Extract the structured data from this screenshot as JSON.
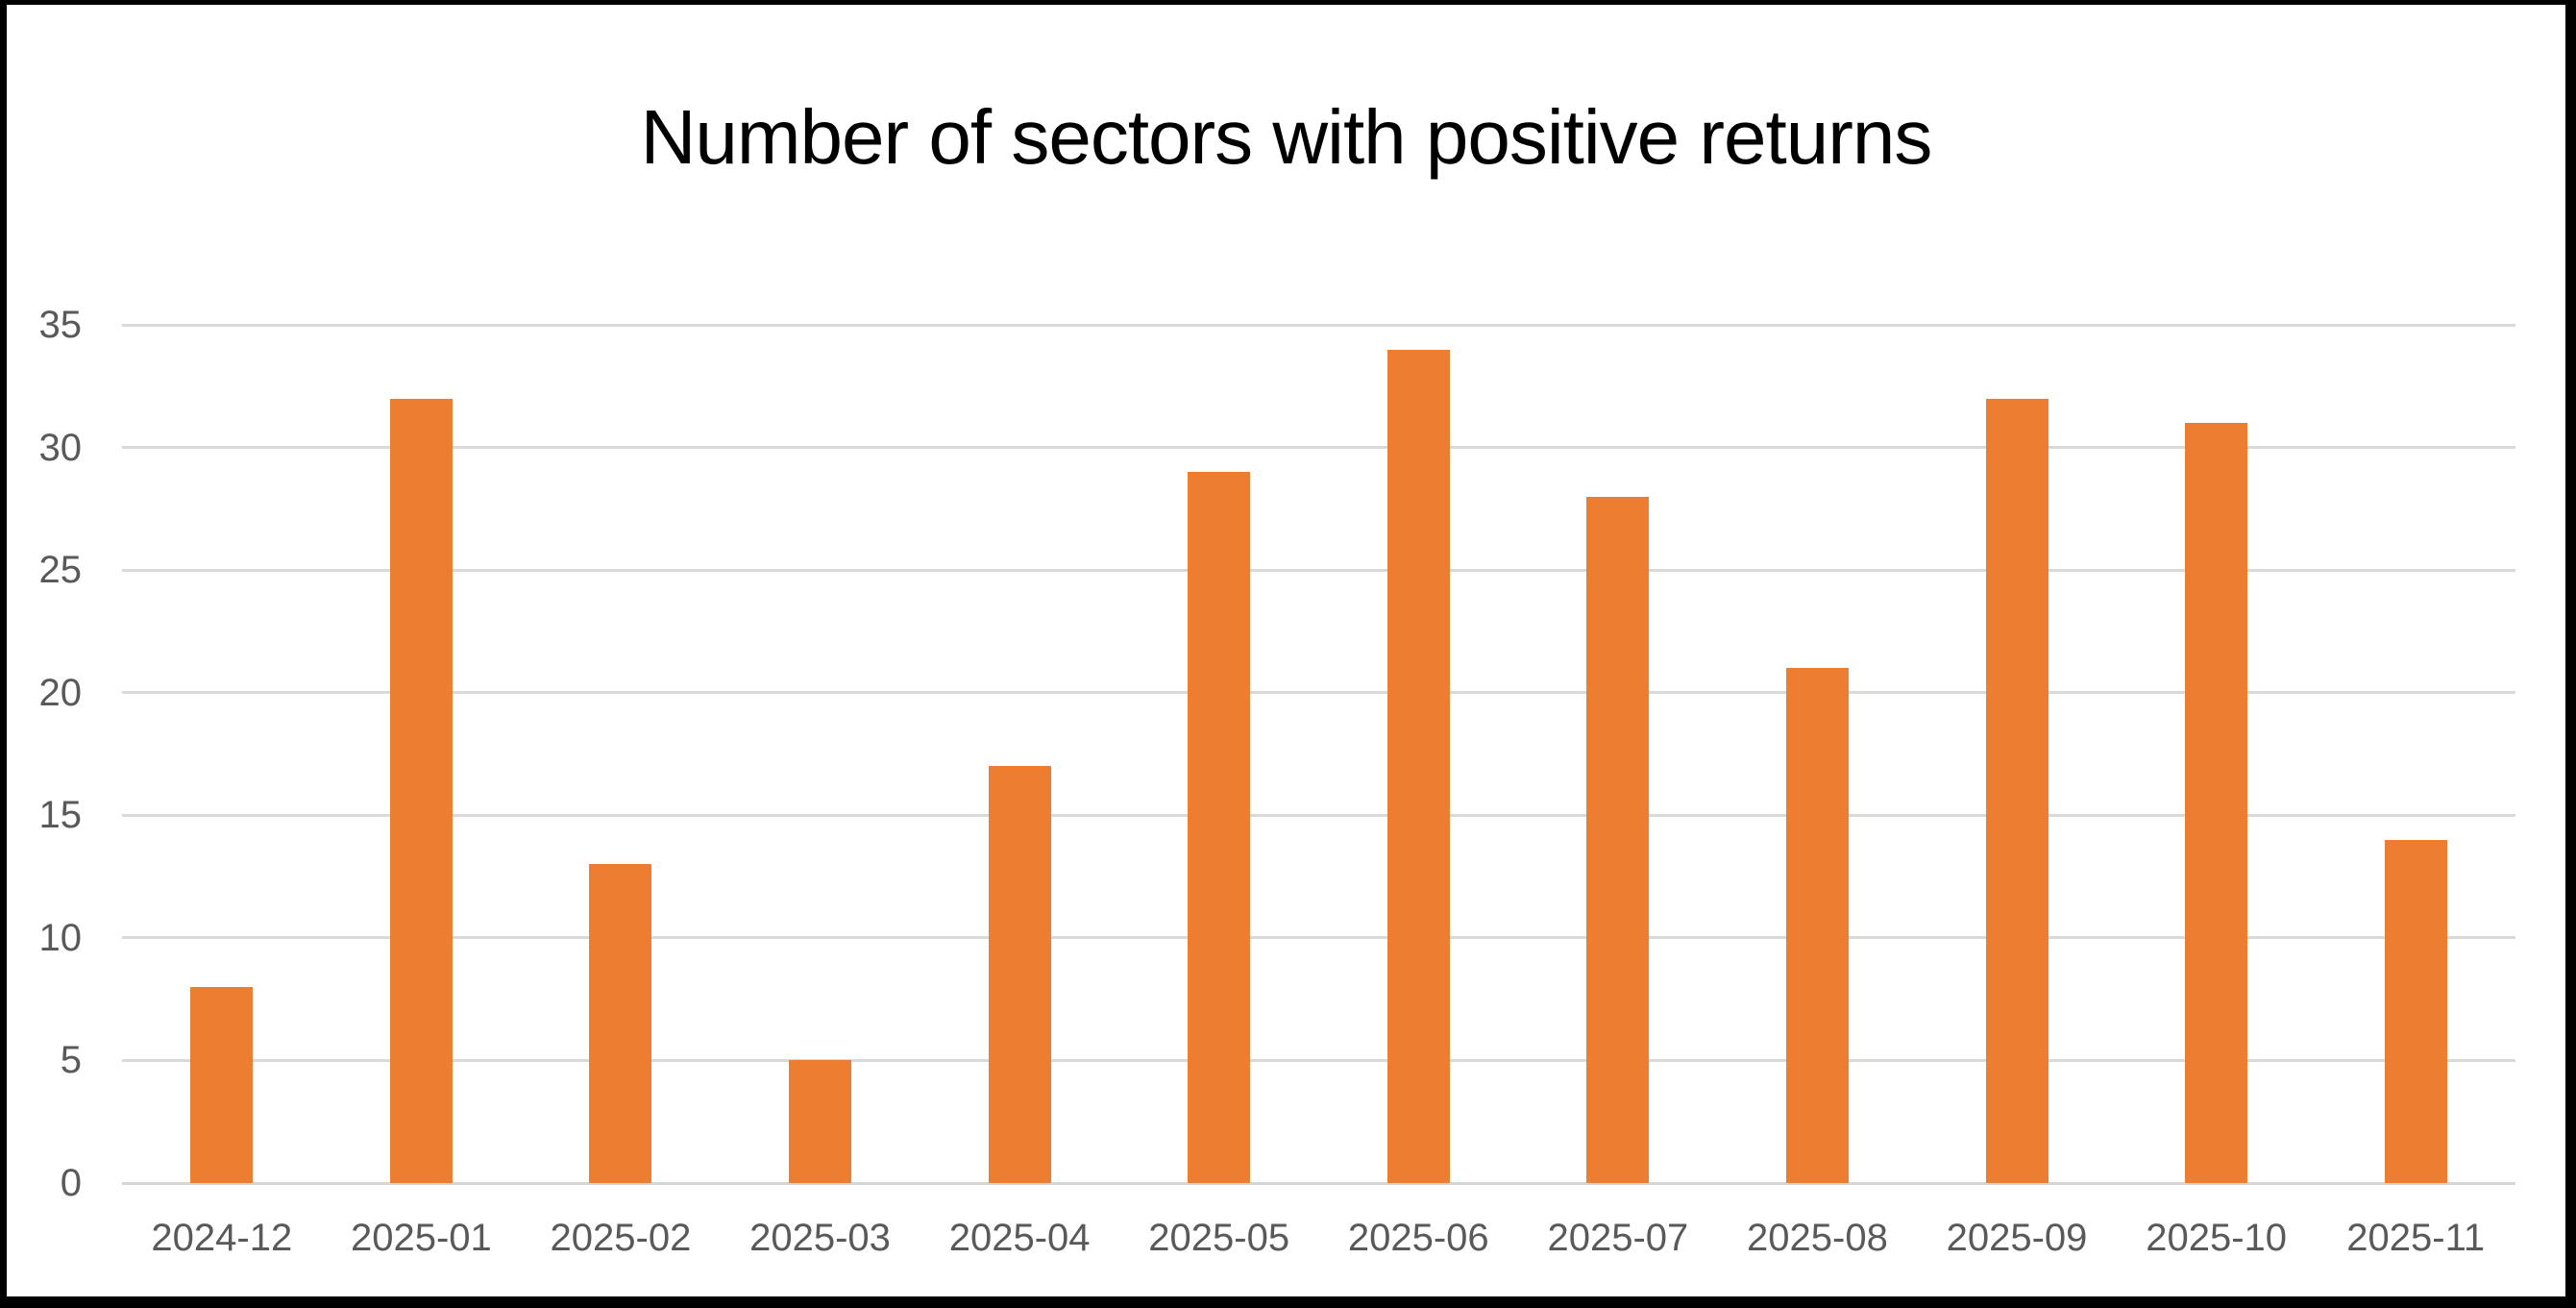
{
  "window": {
    "background_color": "#ffffff",
    "border_color": "#000000"
  },
  "chart_data": {
    "type": "bar",
    "title": "Number of sectors with positive returns",
    "categories": [
      "2024-12",
      "2025-01",
      "2025-02",
      "2025-03",
      "2025-04",
      "2025-05",
      "2025-06",
      "2025-07",
      "2025-08",
      "2025-09",
      "2025-10",
      "2025-11"
    ],
    "values": [
      8,
      32,
      13,
      5,
      17,
      29,
      34,
      28,
      21,
      32,
      31,
      14
    ],
    "xlabel": "",
    "ylabel": "",
    "ylim": [
      0,
      35
    ],
    "yticks": [
      0,
      5,
      10,
      15,
      20,
      25,
      30,
      35
    ],
    "grid": true,
    "legend": false,
    "bar_color": "#ED7D31",
    "gridline_color": "#D9D9D9",
    "axis_line_color": "#D6D6D6",
    "tick_label_color": "#595959",
    "title_color": "#000000"
  }
}
